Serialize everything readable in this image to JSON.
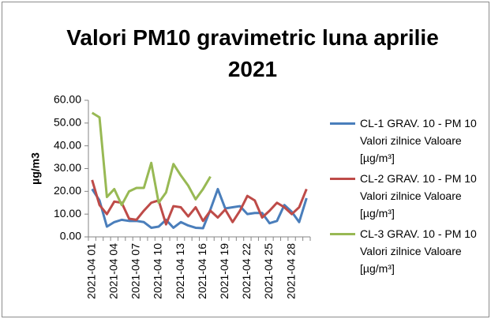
{
  "chart_data": {
    "type": "line",
    "title": "Valori PM10 gravimetric luna aprilie 2021",
    "y_label": "µg/m3",
    "categories": [
      "2021-04 01",
      null,
      null,
      "2021-04 04",
      null,
      null,
      "2021-04 07",
      null,
      null,
      "2021-04 10",
      null,
      null,
      "2021-04 13",
      null,
      null,
      "2021-04 16",
      null,
      null,
      "2021-04 19",
      null,
      null,
      "2021-04 22",
      null,
      null,
      "2021-04 25",
      null,
      null,
      "2021-04 28",
      null,
      null
    ],
    "series": [
      {
        "name": "CL-1 GRAV. 10 - PM 10 Valori zilnice Valoare [µg/m³]",
        "color": "#4a7ebb",
        "values": [
          21,
          16,
          4.5,
          6.5,
          7.5,
          7,
          7,
          6.5,
          4,
          4.5,
          7.5,
          4,
          6.5,
          5,
          4,
          3.8,
          12,
          21,
          12.5,
          13,
          13.5,
          10,
          10.5,
          10.5,
          6,
          7,
          14,
          11,
          6.5,
          17
        ]
      },
      {
        "name": "CL-2 GRAV. 10 - PM 10 Valori zilnice Valoare [µg/m³]",
        "color": "#be4b48",
        "values": [
          25,
          14,
          10,
          15.5,
          15,
          8,
          7.5,
          11.5,
          15,
          16,
          5.5,
          13.5,
          13,
          9,
          13,
          7,
          11.5,
          8.5,
          12,
          6.5,
          11.5,
          18,
          16,
          8.5,
          11.5,
          15,
          13,
          10,
          13,
          21
        ]
      },
      {
        "name": "CL-3 GRAV. 10 - PM 10 Valori zilnice Valoare [µg/m³]",
        "color": "#98b954",
        "values": [
          54.5,
          52.5,
          17.5,
          21,
          14,
          20,
          21.5,
          21.5,
          32.5,
          15,
          19.5,
          32,
          27,
          22.5,
          16.5,
          21,
          26.5,
          null,
          null,
          null,
          null,
          null,
          null,
          null,
          null,
          null,
          null,
          null,
          null,
          null
        ]
      }
    ],
    "ylim": [
      0,
      60
    ],
    "yticks": [
      {
        "value": 0,
        "label": "0.00"
      },
      {
        "value": 10,
        "label": "10.00"
      },
      {
        "value": 20,
        "label": "20.00"
      },
      {
        "value": 30,
        "label": "30.00"
      },
      {
        "value": 40,
        "label": "40.00"
      },
      {
        "value": 50,
        "label": "50.00"
      },
      {
        "value": 60,
        "label": "60.00"
      }
    ]
  }
}
